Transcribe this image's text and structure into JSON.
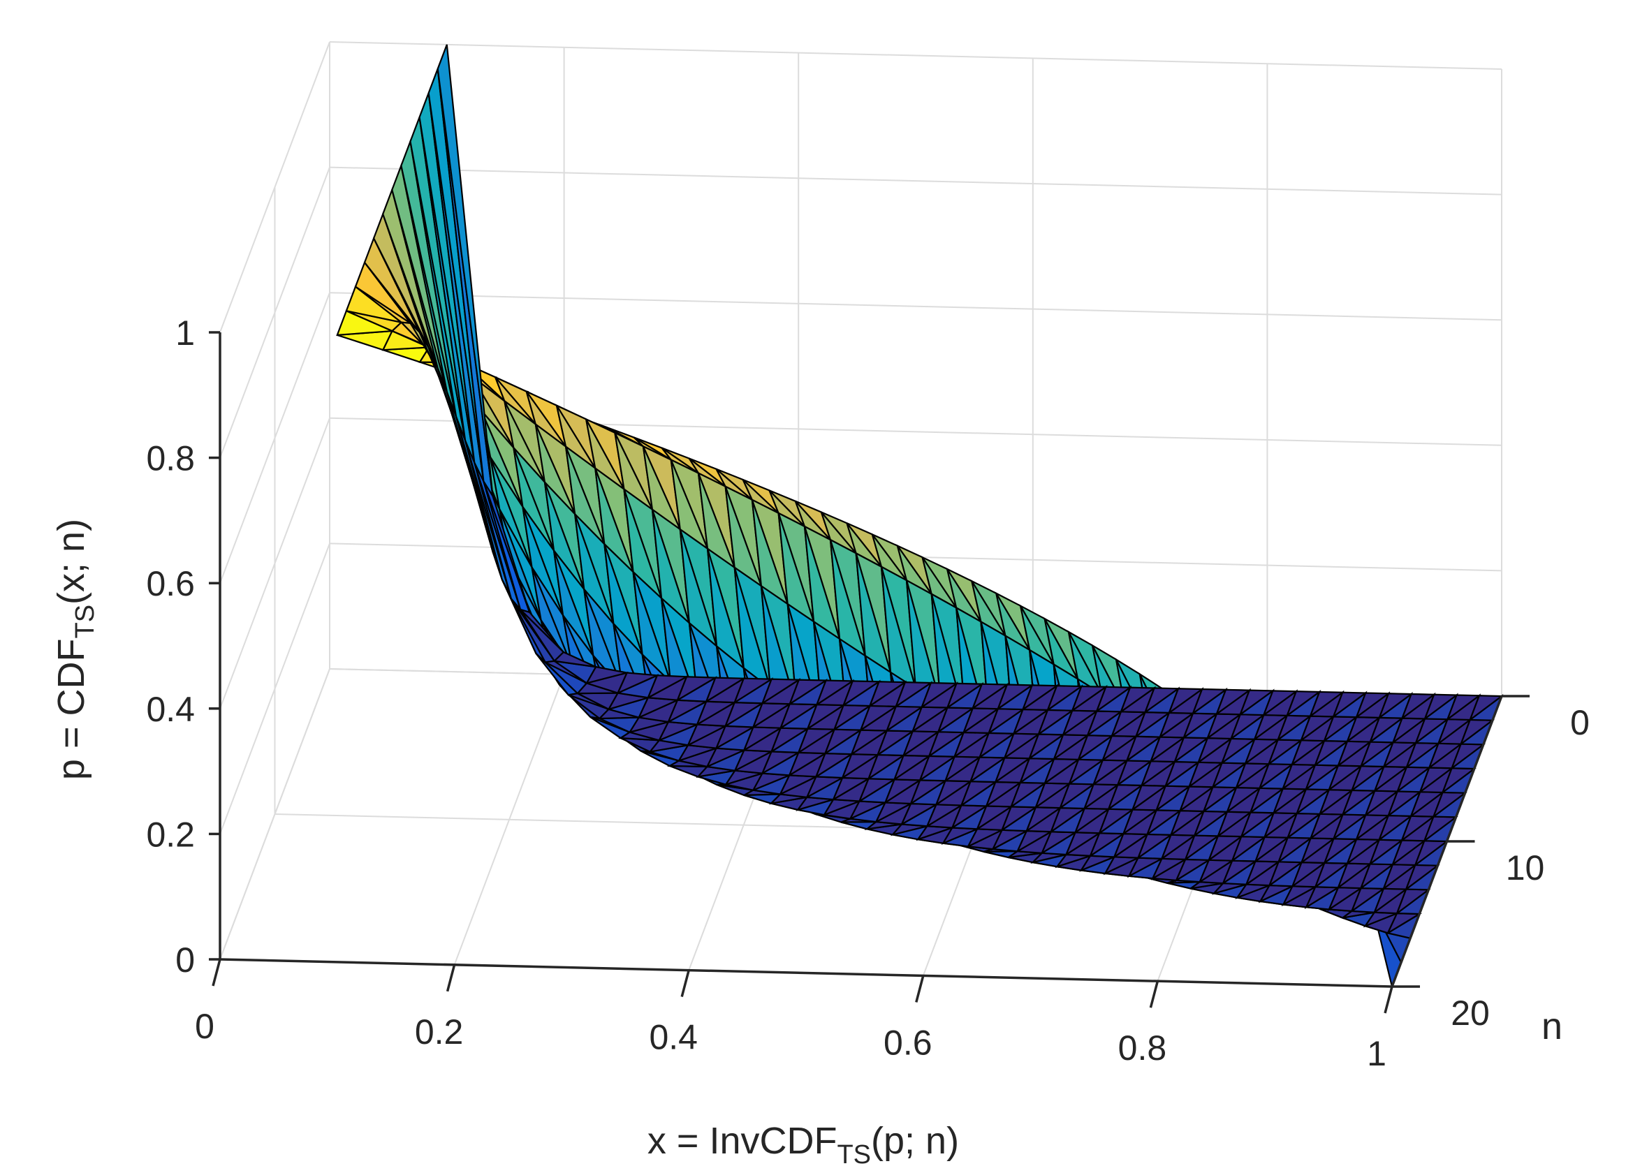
{
  "chart_data": {
    "type": "surface",
    "title": "",
    "x_axis": {
      "label_main": "x = InvCDF",
      "label_sub": "TS",
      "label_tail": "(p; n)",
      "range": [
        0,
        1
      ],
      "ticks": [
        0,
        0.2,
        0.4,
        0.6,
        0.8,
        1
      ],
      "tick_labels": [
        "0",
        "0.2",
        "0.4",
        "0.6",
        "0.8",
        "1"
      ]
    },
    "y_axis": {
      "label": "n",
      "range": [
        0,
        20
      ],
      "ticks": [
        0,
        10,
        20
      ],
      "tick_labels": [
        "0",
        "10",
        "20"
      ]
    },
    "z_axis": {
      "label_main": "p = CDF",
      "label_sub": "TS",
      "label_tail": "(x; n)",
      "range": [
        0,
        1
      ],
      "ticks": [
        0,
        0.2,
        0.4,
        0.6,
        0.8,
        1
      ],
      "tick_labels": [
        "0",
        "0.2",
        "0.4",
        "0.6",
        "0.8",
        "1"
      ]
    },
    "grid": true,
    "colormap": "parula",
    "edge_color": "#000000",
    "colormap_stops": [
      "#352a87",
      "#0f5cdd",
      "#1481d6",
      "#06a4ca",
      "#2eb7a4",
      "#87bf77",
      "#d1bb59",
      "#fec832",
      "#f9fb0e"
    ],
    "surface": {
      "description_points": [
        {
          "x": 0.1,
          "n": 20,
          "p": 0.0
        },
        {
          "x": 0.1,
          "n": 20,
          "p": 1.0
        },
        {
          "x": 1.0,
          "n": 0,
          "p": 0.0
        }
      ]
    }
  }
}
